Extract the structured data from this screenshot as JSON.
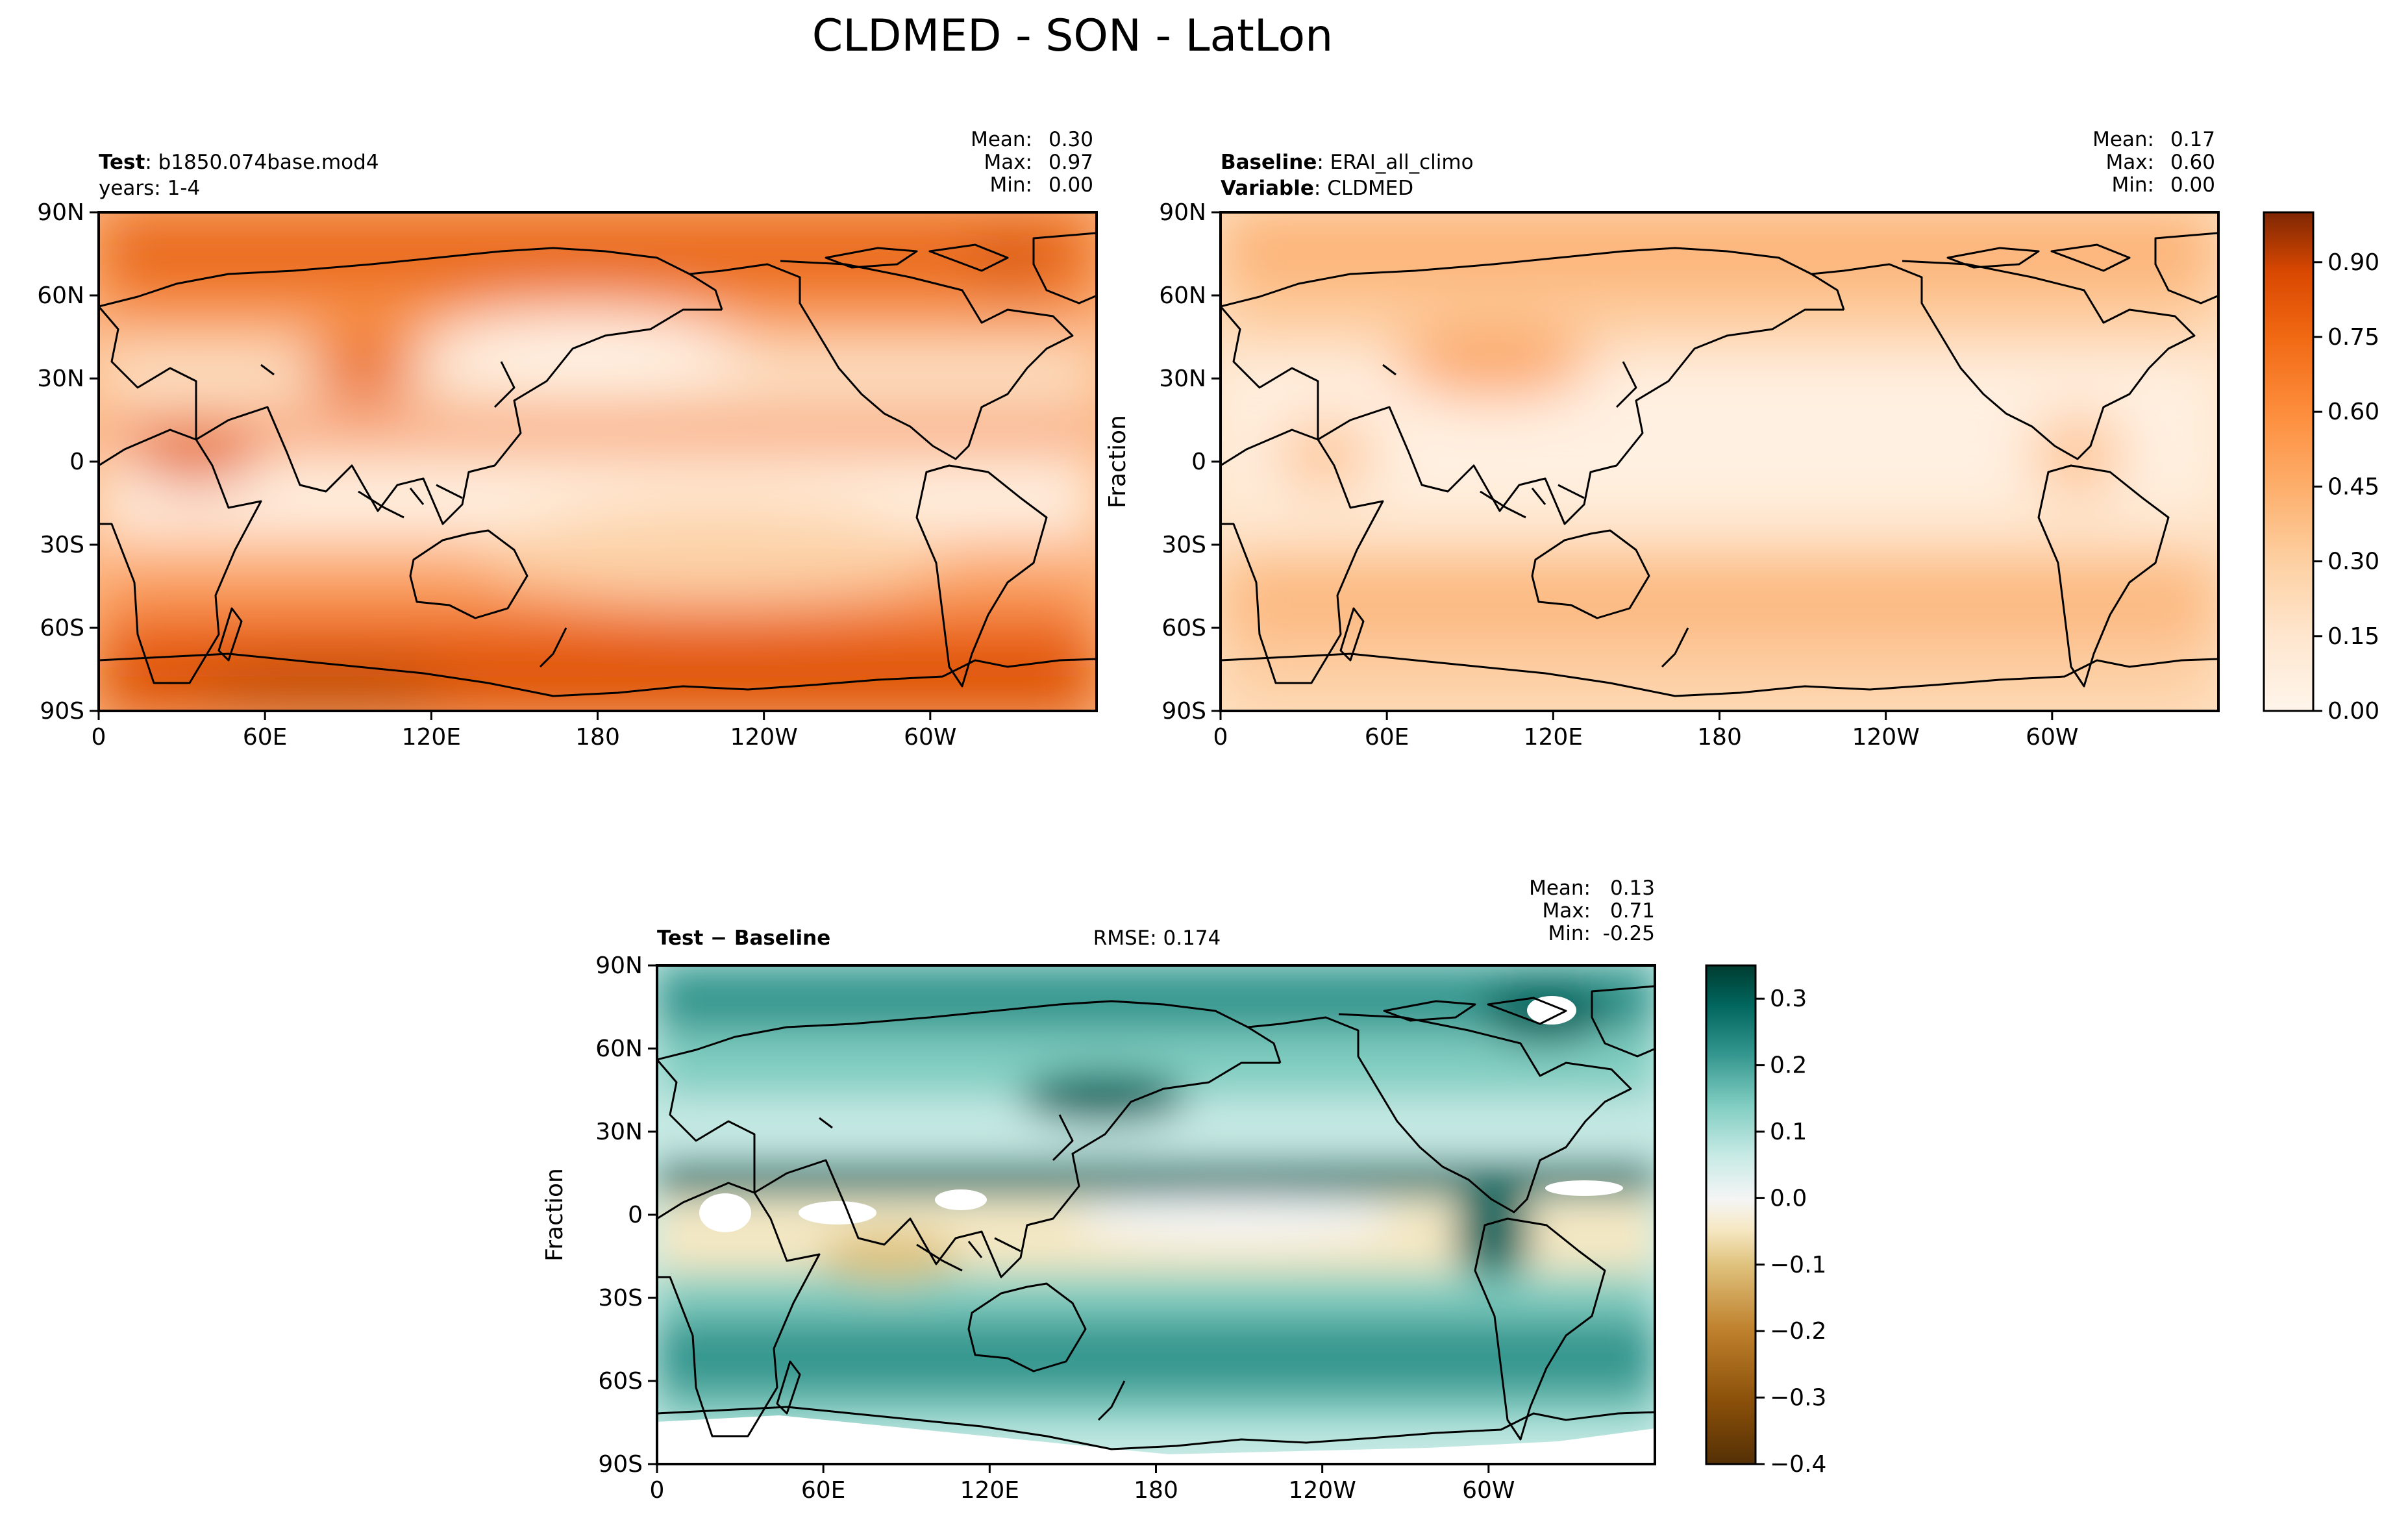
{
  "figure": {
    "title": "CLDMED - SON - LatLon"
  },
  "chart_data": [
    {
      "type": "heatmap",
      "panel": "test",
      "left_lines": [
        {
          "bold": "Test",
          "rest": ": b1850.074base.mod4"
        },
        {
          "bold": "",
          "rest": "years: 1-4"
        }
      ],
      "stats": [
        [
          "Mean:",
          "0.30"
        ],
        [
          "Max:",
          "0.97"
        ],
        [
          "Min:",
          "0.00"
        ]
      ],
      "ylabel": "",
      "x_ticks": [
        "0",
        "60E",
        "120E",
        "180",
        "120W",
        "60W"
      ],
      "y_ticks": [
        "90N",
        "60N",
        "30N",
        "0",
        "30S",
        "60S",
        "90S"
      ],
      "colormap": "Oranges"
    },
    {
      "type": "heatmap",
      "panel": "baseline",
      "left_lines": [
        {
          "bold": "Baseline",
          "rest": ": ERAI_all_climo"
        },
        {
          "bold": "Variable",
          "rest": ": CLDMED"
        }
      ],
      "stats": [
        [
          "Mean:",
          "0.17"
        ],
        [
          "Max:",
          "0.60"
        ],
        [
          "Min:",
          "0.00"
        ]
      ],
      "ylabel": "Fraction",
      "x_ticks": [
        "0",
        "60E",
        "120E",
        "180",
        "120W",
        "60W"
      ],
      "y_ticks": [
        "90N",
        "60N",
        "30N",
        "0",
        "30S",
        "60S",
        "90S"
      ],
      "colormap": "Oranges",
      "colorbar": {
        "range": [
          0.0,
          1.0
        ],
        "levels": 20,
        "ticks": [
          "0.00",
          "0.15",
          "0.30",
          "0.45",
          "0.60",
          "0.75",
          "0.90"
        ]
      }
    },
    {
      "type": "heatmap",
      "panel": "difference",
      "left_lines": [
        {
          "bold": "Test − Baseline",
          "rest": ""
        }
      ],
      "center_text": "RMSE: 0.174",
      "stats": [
        [
          "Mean:",
          "0.13"
        ],
        [
          "Max:",
          "0.71"
        ],
        [
          "Min:",
          "-0.25"
        ]
      ],
      "ylabel": "Fraction",
      "x_ticks": [
        "0",
        "60E",
        "120E",
        "180",
        "120W",
        "60W"
      ],
      "y_ticks": [
        "90N",
        "60N",
        "30N",
        "0",
        "30S",
        "60S",
        "90S"
      ],
      "colormap": "BrBG",
      "colorbar": {
        "range": [
          -0.4,
          0.35
        ],
        "levels": 15,
        "ticks": [
          "0.3",
          "0.2",
          "0.1",
          "0.0",
          "−0.1",
          "−0.2",
          "−0.3",
          "−0.4"
        ]
      }
    }
  ],
  "colors": {
    "oranges": [
      "#fff5eb",
      "#fee6ce",
      "#fdd0a2",
      "#fdae6b",
      "#fd8d3c",
      "#f16913",
      "#d94801",
      "#a63603",
      "#7f2704"
    ],
    "brbg": [
      "#543005",
      "#8c510a",
      "#bf812d",
      "#dfc27d",
      "#f6e8c3",
      "#f5f5f5",
      "#c7eae5",
      "#80cdc1",
      "#35978f",
      "#01665e",
      "#003c30"
    ]
  }
}
